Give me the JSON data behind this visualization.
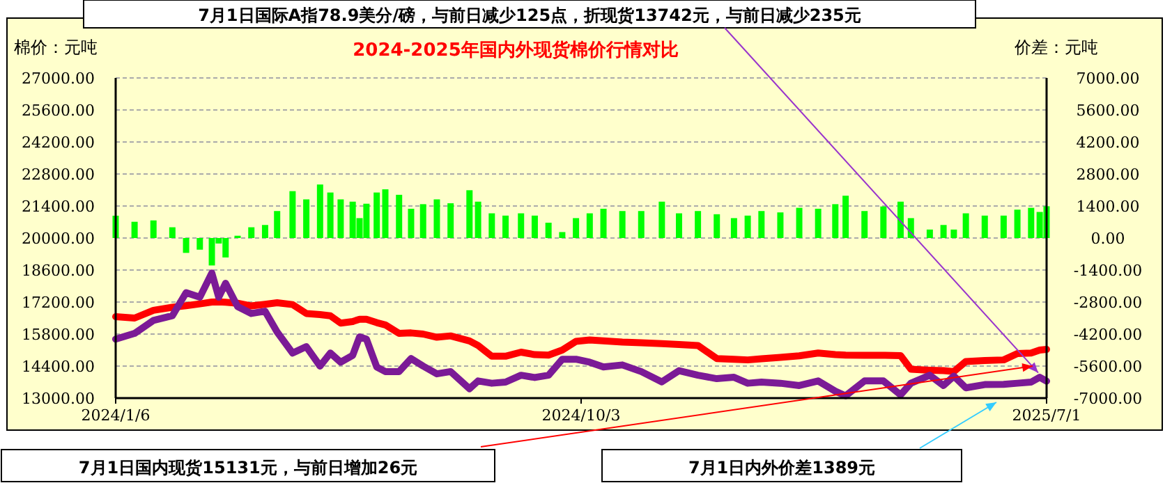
{
  "chart_data": {
    "type": "line",
    "title": "2024-2025年国内外现货棉价行情对比",
    "ylabel": "棉价：元吨",
    "y2label": "价差：元吨",
    "annotations": [
      "7月1日国际A指78.9美分/磅，与前日减少125点，折现货13742元，与前日减少235元",
      "7月1日国内现货15131元，与前日增加26元",
      "7月1日内外价差1389元"
    ],
    "x": [
      "2024-01-06",
      "2024-01-17",
      "2024-01-28",
      "2024-02-08",
      "2024-02-16",
      "2024-02-24",
      "2024-03-02",
      "2024-03-06",
      "2024-03-10",
      "2024-03-17",
      "2024-03-25",
      "2024-04-02",
      "2024-04-09",
      "2024-04-18",
      "2024-04-26",
      "2024-05-04",
      "2024-05-10",
      "2024-05-16",
      "2024-05-23",
      "2024-05-27",
      "2024-05-31",
      "2024-06-06",
      "2024-06-11",
      "2024-06-19",
      "2024-06-26",
      "2024-07-03",
      "2024-07-11",
      "2024-07-19",
      "2024-07-30",
      "2024-08-04",
      "2024-08-12",
      "2024-08-20",
      "2024-08-29",
      "2024-09-06",
      "2024-09-14",
      "2024-09-22",
      "2024-09-30",
      "2024-10-08",
      "2024-10-16",
      "2024-10-27",
      "2024-11-07",
      "2024-11-19",
      "2024-11-29",
      "2024-12-10",
      "2024-12-21",
      "2024-12-31",
      "2025-01-08",
      "2025-01-16",
      "2025-01-27",
      "2025-02-07",
      "2025-02-18",
      "2025-02-28",
      "2025-03-06",
      "2025-03-17",
      "2025-03-28",
      "2025-04-07",
      "2025-04-13",
      "2025-04-24",
      "2025-05-02",
      "2025-05-08",
      "2025-05-15",
      "2025-05-26",
      "2025-06-06",
      "2025-06-14",
      "2025-06-22",
      "2025-06-27",
      "2025-07-01"
    ],
    "series": [
      {
        "type": "bar",
        "axis": "y2",
        "color": "#00ff00",
        "values": [
          976,
          710,
          770,
          470,
          -650,
          -510,
          -1200,
          -240,
          -850,
          100,
          470,
          570,
          1180,
          2050,
          1690,
          2340,
          1990,
          1690,
          1590,
          870,
          1500,
          1990,
          2130,
          1890,
          1280,
          1480,
          1690,
          1520,
          2090,
          1590,
          1080,
          980,
          1080,
          980,
          670,
          260,
          870,
          1080,
          1280,
          1180,
          1180,
          1590,
          1080,
          1180,
          1040,
          870,
          980,
          1180,
          1120,
          1320,
          1280,
          1480,
          1850,
          1180,
          1380,
          1590,
          870,
          370,
          570,
          370,
          1080,
          980,
          980,
          1240,
          1320,
          1140,
          1389
        ]
      },
      {
        "color": "#ff0000",
        "values": [
          16560,
          16500,
          16840,
          16970,
          17040,
          17120,
          17200,
          17210,
          17190,
          17150,
          17030,
          17100,
          17170,
          17090,
          16700,
          16650,
          16600,
          16280,
          16350,
          16450,
          16450,
          16300,
          16200,
          15830,
          15850,
          15800,
          15660,
          15720,
          15500,
          15300,
          14830,
          14830,
          15010,
          14900,
          14880,
          15100,
          15480,
          15540,
          15500,
          15450,
          15420,
          15380,
          15340,
          15300,
          14730,
          14700,
          14670,
          14720,
          14780,
          14850,
          14970,
          14900,
          14880,
          14870,
          14870,
          14860,
          14260,
          14220,
          14200,
          14160,
          14600,
          14640,
          14670,
          14950,
          14970,
          15100,
          15131
        ]
      },
      {
        "color": "#7b1a96",
        "values": [
          15580,
          15830,
          16400,
          16600,
          17610,
          17410,
          18470,
          17410,
          18020,
          17000,
          16700,
          16800,
          15890,
          14970,
          15250,
          14400,
          14970,
          14570,
          14870,
          15680,
          15580,
          14360,
          14160,
          14160,
          14730,
          14400,
          14060,
          14160,
          13410,
          13750,
          13650,
          13700,
          14000,
          13900,
          14000,
          14700,
          14700,
          14570,
          14360,
          14450,
          14160,
          13710,
          14200,
          14000,
          13850,
          13910,
          13650,
          13700,
          13650,
          13550,
          13750,
          13300,
          13100,
          13750,
          13750,
          13140,
          13650,
          14000,
          13550,
          13960,
          13450,
          13590,
          13600,
          13650,
          13700,
          13910,
          13742
        ]
      }
    ],
    "xlim": [
      "2024-01-06",
      "2025-07-01"
    ],
    "xticks": [
      {
        "value": "2024-01-06",
        "label": "2024/1/6"
      },
      {
        "value": "2024-10-03",
        "label": "2024/10/3"
      },
      {
        "value": "2025-07-01",
        "label": "2025/7/1"
      }
    ],
    "ylim": [
      13000,
      27000
    ],
    "yticks": [
      {
        "value": 13000,
        "label": "13000.00"
      },
      {
        "value": 14400,
        "label": "14400.00"
      },
      {
        "value": 15800,
        "label": "15800.00"
      },
      {
        "value": 17200,
        "label": "17200.00"
      },
      {
        "value": 18600,
        "label": "18600.00"
      },
      {
        "value": 20000,
        "label": "20000.00"
      },
      {
        "value": 21400,
        "label": "21400.00"
      },
      {
        "value": 22800,
        "label": "22800.00"
      },
      {
        "value": 24200,
        "label": "24200.00"
      },
      {
        "value": 25600,
        "label": "25600.00"
      },
      {
        "value": 27000,
        "label": "27000.00"
      }
    ],
    "y2lim": [
      -7000,
      7000
    ],
    "y2ticks": [
      {
        "value": -7000,
        "label": "-7000.00"
      },
      {
        "value": -5600,
        "label": "-5600.00"
      },
      {
        "value": -4200,
        "label": "-4200.00"
      },
      {
        "value": -2800,
        "label": "-2800.00"
      },
      {
        "value": -1400,
        "label": "-1400.00"
      },
      {
        "value": 0,
        "label": "0.00"
      },
      {
        "value": 1400,
        "label": "1400.00"
      },
      {
        "value": 2800,
        "label": "2800.00"
      },
      {
        "value": 4200,
        "label": "4200.00"
      },
      {
        "value": 5600,
        "label": "5600.00"
      },
      {
        "value": 7000,
        "label": "7000.00"
      }
    ],
    "grid": "y",
    "marker": "none",
    "line_style": "solid"
  }
}
